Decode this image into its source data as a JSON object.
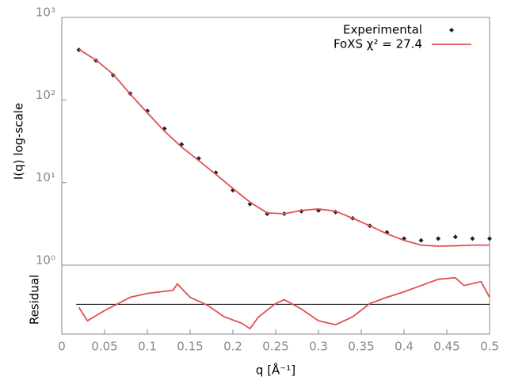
{
  "chart_data": [
    {
      "type": "line",
      "ylabel": "I(q) log-scale",
      "xlim": [
        0,
        0.5
      ],
      "ylim": [
        1,
        1000
      ],
      "log_y": true,
      "yticks": [
        {
          "value": 1,
          "label": "10⁰"
        },
        {
          "value": 10,
          "label": "10¹"
        },
        {
          "value": 100,
          "label": "10²"
        },
        {
          "value": 1000,
          "label": "10³"
        }
      ],
      "legend": "top-right",
      "x": [
        0.02,
        0.04,
        0.06,
        0.08,
        0.1,
        0.12,
        0.14,
        0.16,
        0.18,
        0.2,
        0.22,
        0.24,
        0.26,
        0.28,
        0.3,
        0.32,
        0.34,
        0.36,
        0.38,
        0.4,
        0.42,
        0.44,
        0.46,
        0.48,
        0.5
      ],
      "series": [
        {
          "name": "Experimental",
          "kind": "points",
          "color": "#222222",
          "values": [
            405,
            300,
            200,
            120,
            74,
            45,
            29,
            19.6,
            13.2,
            8.1,
            5.5,
            4.2,
            4.2,
            4.5,
            4.6,
            4.4,
            3.7,
            3.0,
            2.5,
            2.1,
            2.0,
            2.1,
            2.2,
            2.1,
            2.1
          ]
        },
        {
          "name": "FoXS χ² = 27.4",
          "kind": "line",
          "color": "#e05050",
          "values": [
            410,
            305,
            205,
            118,
            70,
            42,
            27,
            18.5,
            12.6,
            8.5,
            5.8,
            4.3,
            4.2,
            4.6,
            4.8,
            4.5,
            3.7,
            3.0,
            2.4,
            2.0,
            1.75,
            1.7,
            1.72,
            1.75,
            1.75
          ]
        }
      ]
    },
    {
      "type": "line",
      "ylabel": "Residual",
      "xlabel": "q [Å⁻¹]",
      "xlim": [
        0,
        0.5
      ],
      "ylim": [
        -1.9,
        2.5
      ],
      "xticks": [
        0,
        0.05,
        0.1,
        0.15,
        0.2,
        0.25,
        0.3,
        0.35,
        0.4,
        0.45,
        0.5
      ],
      "reference_line": 0,
      "x": [
        0.02,
        0.03,
        0.05,
        0.08,
        0.1,
        0.13,
        0.135,
        0.15,
        0.17,
        0.19,
        0.21,
        0.22,
        0.23,
        0.25,
        0.26,
        0.28,
        0.3,
        0.32,
        0.34,
        0.36,
        0.38,
        0.4,
        0.42,
        0.44,
        0.46,
        0.47,
        0.49,
        0.5
      ],
      "series": [
        {
          "color": "#e05050",
          "values": [
            -0.2,
            -1.05,
            -0.4,
            0.45,
            0.7,
            0.9,
            1.3,
            0.45,
            -0.05,
            -0.8,
            -1.2,
            -1.55,
            -0.8,
            0.05,
            0.3,
            -0.3,
            -1.05,
            -1.3,
            -0.8,
            0.05,
            0.45,
            0.8,
            1.2,
            1.6,
            1.7,
            1.2,
            1.45,
            0.45
          ]
        }
      ]
    }
  ]
}
